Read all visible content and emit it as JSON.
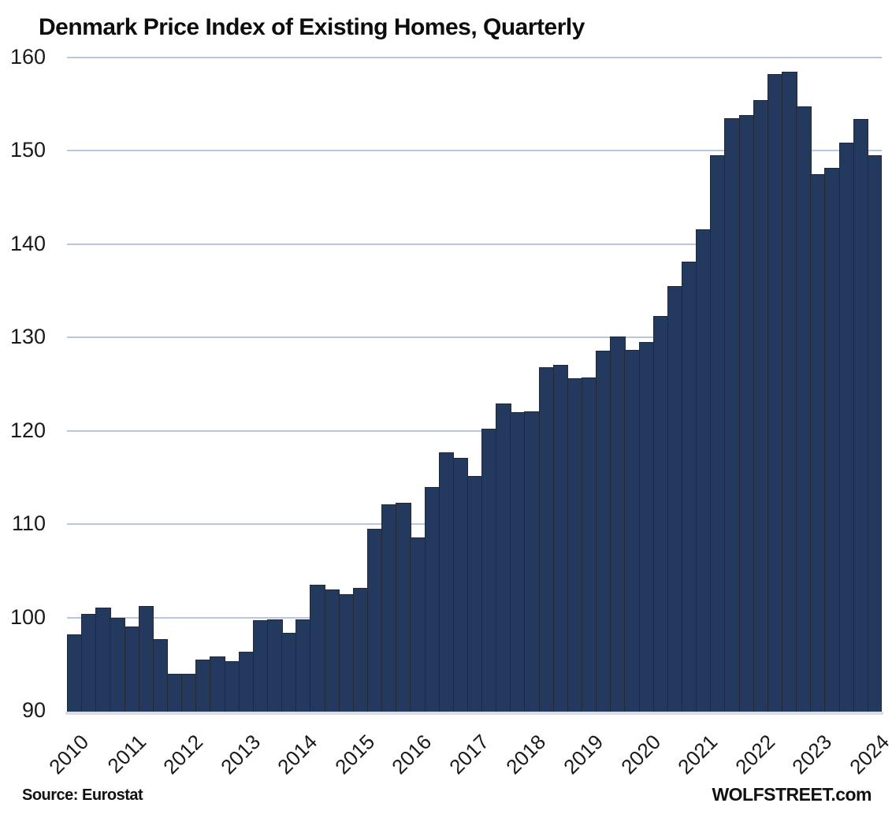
{
  "header": {
    "title": "Denmark Price Index of Existing Homes, Quarterly"
  },
  "footer": {
    "source": "Source: Eurostat",
    "watermark": "WOLFSTREET.com"
  },
  "colors": {
    "bar_fill": "#233a5e",
    "bar_border": "#222a38",
    "gridline": "#b7c7e3",
    "baseline": "#dcdce2",
    "text": "#1a1a1a"
  },
  "chart_data": {
    "type": "bar",
    "title": "Denmark Price Index of Existing Homes, Quarterly",
    "xlabel": "",
    "ylabel": "",
    "ylim": [
      90,
      160
    ],
    "y_ticks": [
      160,
      150,
      140,
      130,
      120,
      110,
      100,
      90
    ],
    "x_tick_labels": [
      "2010",
      "2011",
      "2012",
      "2013",
      "2014",
      "2015",
      "2016",
      "2017",
      "2018",
      "2019",
      "2020",
      "2021",
      "2022",
      "2023",
      "2024"
    ],
    "grid": "horizontal",
    "legend": "none",
    "categories": [
      "2010 Q1",
      "2010 Q2",
      "2010 Q3",
      "2010 Q4",
      "2011 Q1",
      "2011 Q2",
      "2011 Q3",
      "2011 Q4",
      "2012 Q1",
      "2012 Q2",
      "2012 Q3",
      "2012 Q4",
      "2013 Q1",
      "2013 Q2",
      "2013 Q3",
      "2013 Q4",
      "2014 Q1",
      "2014 Q2",
      "2014 Q3",
      "2014 Q4",
      "2015 Q1",
      "2015 Q2",
      "2015 Q3",
      "2015 Q4",
      "2016 Q1",
      "2016 Q2",
      "2016 Q3",
      "2016 Q4",
      "2017 Q1",
      "2017 Q2",
      "2017 Q3",
      "2017 Q4",
      "2018 Q1",
      "2018 Q2",
      "2018 Q3",
      "2018 Q4",
      "2019 Q1",
      "2019 Q2",
      "2019 Q3",
      "2019 Q4",
      "2020 Q1",
      "2020 Q2",
      "2020 Q3",
      "2020 Q4",
      "2021 Q1",
      "2021 Q2",
      "2021 Q3",
      "2021 Q4",
      "2022 Q1",
      "2022 Q2",
      "2022 Q3",
      "2022 Q4",
      "2023 Q1",
      "2023 Q2",
      "2023 Q3",
      "2023 Q4",
      "2024 Q1"
    ],
    "series": [
      {
        "name": "Price index of existing homes",
        "values": [
          98.2,
          100.4,
          101.1,
          100.0,
          99.0,
          101.2,
          97.7,
          94.0,
          94.0,
          95.5,
          95.8,
          95.3,
          96.3,
          99.7,
          99.8,
          98.4,
          99.8,
          103.5,
          103.0,
          102.5,
          103.2,
          109.5,
          112.1,
          112.3,
          108.6,
          114.0,
          117.7,
          117.1,
          115.2,
          120.2,
          122.9,
          122.0,
          122.1,
          126.8,
          127.1,
          125.6,
          125.7,
          128.6,
          130.1,
          128.7,
          129.5,
          132.3,
          135.5,
          138.1,
          141.6,
          149.5,
          153.5,
          153.8,
          155.4,
          158.2,
          158.5,
          154.8,
          147.5,
          148.2,
          150.9,
          153.4,
          149.5
        ]
      }
    ]
  }
}
